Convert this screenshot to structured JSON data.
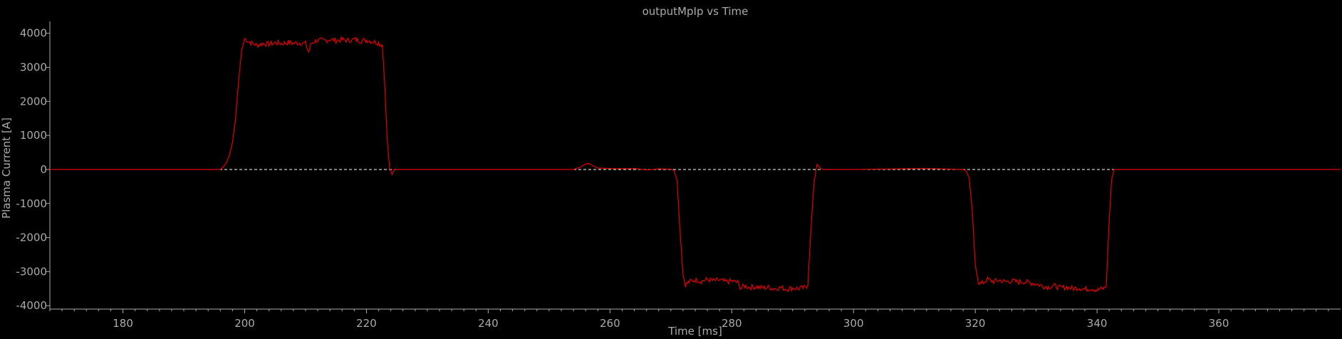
{
  "chart_data": {
    "type": "line",
    "title": "outputMpIp vs Time",
    "xlabel": "Time [ms]",
    "ylabel": "Plasma Current [A]",
    "xlim": [
      168,
      380
    ],
    "ylim": [
      -4100,
      4350
    ],
    "x_ticks": [
      180,
      200,
      220,
      240,
      260,
      280,
      300,
      320,
      340,
      360
    ],
    "y_ticks": [
      4000,
      3000,
      2000,
      1000,
      0,
      -1000,
      -2000,
      -3000,
      -4000
    ],
    "grid": false,
    "background": "#000000",
    "series": [
      {
        "color": "#e00000",
        "points": [
          [
            168,
            0
          ],
          [
            196,
            0
          ],
          [
            196.5,
            80
          ],
          [
            197,
            200
          ],
          [
            197.5,
            420
          ],
          [
            198,
            800
          ],
          [
            198.5,
            1500
          ],
          [
            199,
            2600
          ],
          [
            199.5,
            3500
          ],
          [
            200,
            3850
          ],
          [
            201,
            3720
          ],
          [
            202,
            3650
          ],
          [
            203,
            3700
          ],
          [
            204,
            3680
          ],
          [
            205,
            3720
          ],
          [
            206,
            3700
          ],
          [
            207,
            3730
          ],
          [
            208,
            3710
          ],
          [
            209,
            3720
          ],
          [
            210,
            3700
          ],
          [
            210.5,
            3450
          ],
          [
            211,
            3720
          ],
          [
            212,
            3800
          ],
          [
            213,
            3780
          ],
          [
            214,
            3820
          ],
          [
            215,
            3790
          ],
          [
            216,
            3810
          ],
          [
            217,
            3790
          ],
          [
            218,
            3820
          ],
          [
            219,
            3780
          ],
          [
            220,
            3800
          ],
          [
            221,
            3760
          ],
          [
            222,
            3720
          ],
          [
            222.6,
            3650
          ],
          [
            223,
            2500
          ],
          [
            223.4,
            900
          ],
          [
            223.8,
            50
          ],
          [
            224.2,
            -150
          ],
          [
            224.6,
            10
          ],
          [
            225,
            0
          ],
          [
            254,
            0
          ],
          [
            255,
            60
          ],
          [
            256,
            160
          ],
          [
            256.5,
            180
          ],
          [
            257,
            130
          ],
          [
            258,
            40
          ],
          [
            260,
            30
          ],
          [
            262,
            20
          ],
          [
            264,
            30
          ],
          [
            266,
            -15
          ],
          [
            268,
            20
          ],
          [
            270,
            10
          ],
          [
            270.5,
            -30
          ],
          [
            271,
            -300
          ],
          [
            271.5,
            -1800
          ],
          [
            272,
            -3100
          ],
          [
            272.4,
            -3380
          ],
          [
            273,
            -3300
          ],
          [
            274,
            -3240
          ],
          [
            275,
            -3280
          ],
          [
            276,
            -3230
          ],
          [
            277,
            -3270
          ],
          [
            278,
            -3250
          ],
          [
            279,
            -3300
          ],
          [
            280,
            -3280
          ],
          [
            281,
            -3320
          ],
          [
            281.5,
            -3500
          ],
          [
            282,
            -3420
          ],
          [
            283,
            -3460
          ],
          [
            284,
            -3440
          ],
          [
            285,
            -3480
          ],
          [
            286,
            -3460
          ],
          [
            287,
            -3500
          ],
          [
            288,
            -3470
          ],
          [
            289,
            -3510
          ],
          [
            290,
            -3480
          ],
          [
            291,
            -3500
          ],
          [
            292,
            -3470
          ],
          [
            292.5,
            -3400
          ],
          [
            293,
            -1800
          ],
          [
            293.5,
            -400
          ],
          [
            294,
            150
          ],
          [
            294.6,
            30
          ],
          [
            295,
            0
          ],
          [
            300,
            0
          ],
          [
            304,
            10
          ],
          [
            308,
            20
          ],
          [
            312,
            30
          ],
          [
            315,
            15
          ],
          [
            318,
            0
          ],
          [
            318.5,
            -40
          ],
          [
            319,
            -250
          ],
          [
            319.5,
            -1200
          ],
          [
            320,
            -2800
          ],
          [
            320.5,
            -3300
          ],
          [
            321,
            -3360
          ],
          [
            322,
            -3230
          ],
          [
            323,
            -3290
          ],
          [
            324,
            -3250
          ],
          [
            325,
            -3300
          ],
          [
            326,
            -3270
          ],
          [
            327,
            -3310
          ],
          [
            328,
            -3290
          ],
          [
            329,
            -3330
          ],
          [
            330,
            -3360
          ],
          [
            331,
            -3420
          ],
          [
            332,
            -3450
          ],
          [
            333,
            -3420
          ],
          [
            334,
            -3480
          ],
          [
            335,
            -3450
          ],
          [
            336,
            -3500
          ],
          [
            337,
            -3470
          ],
          [
            338,
            -3520
          ],
          [
            339,
            -3490
          ],
          [
            340,
            -3540
          ],
          [
            341,
            -3500
          ],
          [
            341.5,
            -3450
          ],
          [
            342,
            -1500
          ],
          [
            342.4,
            -300
          ],
          [
            342.8,
            0
          ],
          [
            380,
            0
          ]
        ]
      }
    ],
    "reference_line": {
      "y": 0,
      "color": "#ffffff",
      "style": "dashed"
    }
  }
}
